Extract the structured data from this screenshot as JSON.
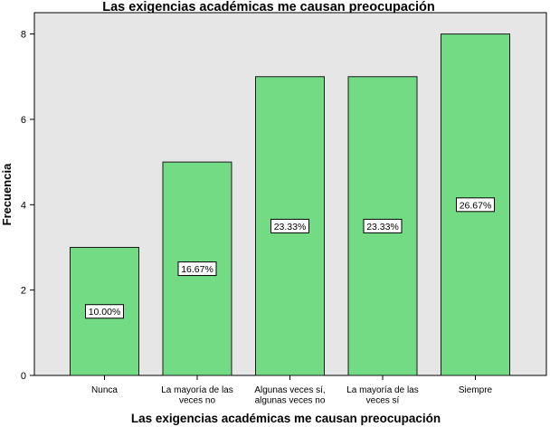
{
  "chart_data": {
    "type": "bar",
    "title": "Las exigencias académicas me causan preocupación",
    "xlabel": "Las exigencias académicas me causan preocupación",
    "ylabel": "Frecuencia",
    "categories": [
      [
        "Nunca"
      ],
      [
        "La mayoría de las",
        "veces no"
      ],
      [
        "Algunas veces sí,",
        "algunas veces no"
      ],
      [
        "La mayoría de las",
        "veces sí"
      ],
      [
        "Siempre"
      ]
    ],
    "values": [
      3,
      5,
      7,
      7,
      8
    ],
    "data_labels": [
      "10.00%",
      "16.67%",
      "23.33%",
      "23.33%",
      "26.67%"
    ],
    "ylim": [
      0,
      8.5
    ],
    "yticks": [
      0,
      2,
      4,
      6,
      8
    ],
    "grid": false,
    "colors": {
      "bar_fill": "#72db84",
      "bar_stroke": "#1a1a1a",
      "plot_background": "#e6e6e6",
      "label_box_fill": "#ffffff"
    }
  }
}
